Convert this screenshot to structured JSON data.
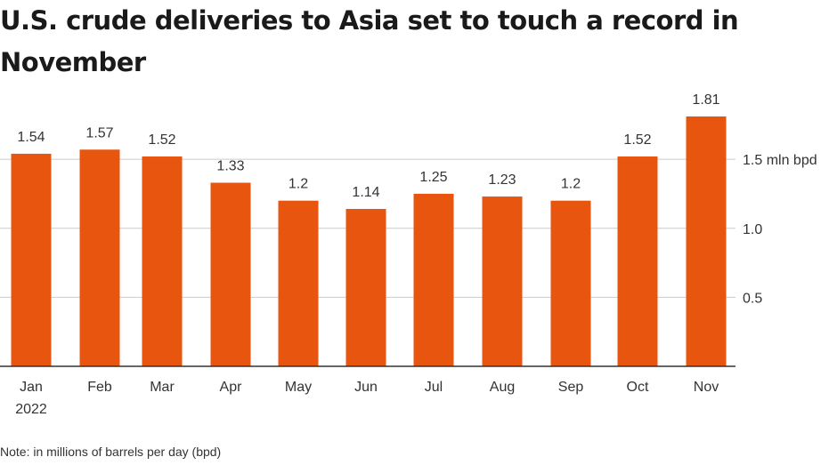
{
  "chart_data": {
    "type": "bar",
    "title": "U.S. crude deliveries to Asia set to touch a record in November",
    "categories": [
      "Jan",
      "Feb",
      "Mar",
      "Apr",
      "May",
      "Jun",
      "Jul",
      "Aug",
      "Sep",
      "Oct",
      "Nov"
    ],
    "category_sublabels": [
      "2022",
      "",
      "",
      "",
      "",
      "",
      "",
      "",
      "",
      "",
      ""
    ],
    "values": [
      1.54,
      1.57,
      1.52,
      1.33,
      1.2,
      1.14,
      1.25,
      1.23,
      1.2,
      1.52,
      1.81
    ],
    "data_labels": [
      "1.54",
      "1.57",
      "1.52",
      "1.33",
      "1.2",
      "1.14",
      "1.25",
      "1.23",
      "1.2",
      "1.52",
      "1.81"
    ],
    "yticks": [
      {
        "value": 0.5,
        "label": "0.5"
      },
      {
        "value": 1.0,
        "label": "1.0"
      },
      {
        "value": 1.5,
        "label": "1.5 mln bpd"
      }
    ],
    "ylim": [
      0,
      1.81
    ],
    "grid": true,
    "y_axis_position": "right",
    "bar_color": "#e8550f",
    "grid_color": "#cccccc",
    "note": "Note: in millions of barrels per day (bpd)"
  }
}
